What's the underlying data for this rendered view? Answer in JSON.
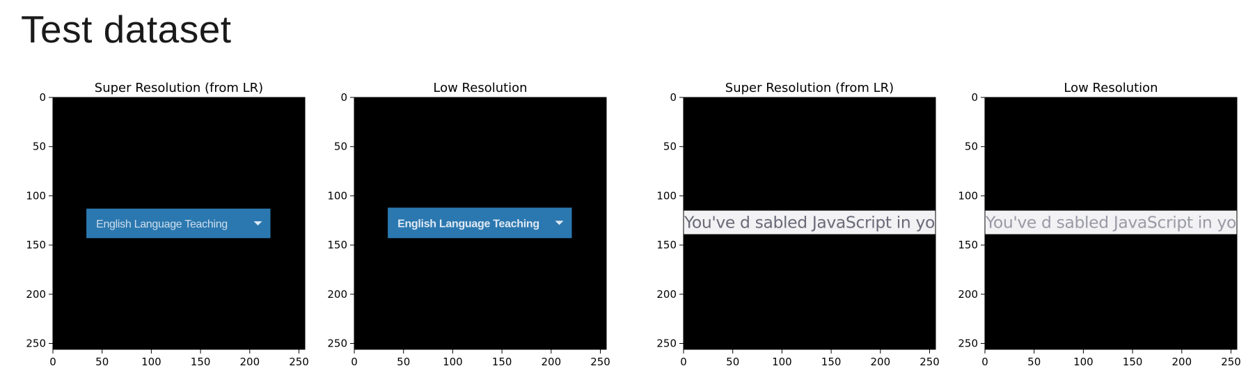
{
  "page": {
    "title": "Test dataset"
  },
  "colors": {
    "image_background": "#000000",
    "banner_blue": "#2b78b0",
    "banner_white": "#f2f2f4",
    "banner_blue_text": "#dfe9f3",
    "banner_white_text": "#6a6a78"
  },
  "chart_data": [
    {
      "type": "image",
      "title": "Super Resolution (from LR)",
      "xlim": [
        0,
        256
      ],
      "ylim": [
        256,
        0
      ],
      "xticks": [
        0,
        50,
        100,
        150,
        200,
        250
      ],
      "yticks": [
        0,
        50,
        100,
        150,
        200,
        250
      ],
      "banner": {
        "style": "blue",
        "x0": 34,
        "x1": 221,
        "y0": 113,
        "y1": 143,
        "text": "English Language Teaching",
        "has_dropdown_arrow": true
      }
    },
    {
      "type": "image",
      "title": "Low Resolution",
      "xlim": [
        0,
        256
      ],
      "ylim": [
        256,
        0
      ],
      "xticks": [
        0,
        50,
        100,
        150,
        200,
        250
      ],
      "yticks": [
        0,
        50,
        100,
        150,
        200,
        250
      ],
      "banner": {
        "style": "blue",
        "x0": 34,
        "x1": 221,
        "y0": 112,
        "y1": 143,
        "text": "English Language Teaching",
        "has_dropdown_arrow": true
      }
    },
    {
      "type": "image",
      "title": "Super Resolution (from LR)",
      "xlim": [
        0,
        256
      ],
      "ylim": [
        256,
        0
      ],
      "xticks": [
        0,
        50,
        100,
        150,
        200,
        250
      ],
      "yticks": [
        0,
        50,
        100,
        150,
        200,
        250
      ],
      "banner": {
        "style": "white",
        "x0": 0,
        "x1": 256,
        "y0": 115,
        "y1": 139,
        "text": "You've d sabled JavaScript in yo",
        "has_dropdown_arrow": false
      }
    },
    {
      "type": "image",
      "title": "Low Resolution",
      "xlim": [
        0,
        256
      ],
      "ylim": [
        256,
        0
      ],
      "xticks": [
        0,
        50,
        100,
        150,
        200,
        250
      ],
      "yticks": [
        0,
        50,
        100,
        150,
        200,
        250
      ],
      "banner": {
        "style": "white",
        "x0": 0,
        "x1": 256,
        "y0": 115,
        "y1": 139,
        "text": "You've d sabled JavaScript in yo",
        "has_dropdown_arrow": false
      }
    }
  ]
}
